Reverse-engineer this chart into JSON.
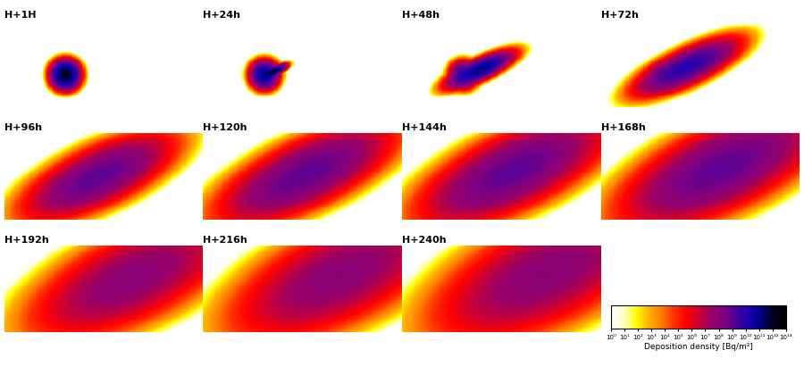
{
  "panels": [
    {
      "label": "H+1H",
      "row": 0,
      "col": 0,
      "time_hrs": 1
    },
    {
      "label": "H+24h",
      "row": 0,
      "col": 1,
      "time_hrs": 24
    },
    {
      "label": "H+48h",
      "row": 0,
      "col": 2,
      "time_hrs": 48
    },
    {
      "label": "H+72h",
      "row": 0,
      "col": 3,
      "time_hrs": 72
    },
    {
      "label": "H+96h",
      "row": 1,
      "col": 0,
      "time_hrs": 96
    },
    {
      "label": "H+120h",
      "row": 1,
      "col": 1,
      "time_hrs": 120
    },
    {
      "label": "H+144h",
      "row": 1,
      "col": 2,
      "time_hrs": 144
    },
    {
      "label": "H+168h",
      "row": 1,
      "col": 3,
      "time_hrs": 168
    },
    {
      "label": "H+192h",
      "row": 2,
      "col": 0,
      "time_hrs": 192
    },
    {
      "label": "H+216h",
      "row": 2,
      "col": 1,
      "time_hrs": 216
    },
    {
      "label": "H+240h",
      "row": 2,
      "col": 2,
      "time_hrs": 240
    }
  ],
  "colormap_colors": [
    "#ffffff",
    "#fffff0",
    "#ffffe0",
    "#ffffc0",
    "#ffff80",
    "#ffff00",
    "#ffee00",
    "#ffdd00",
    "#ffcc00",
    "#ffaa00",
    "#ff8800",
    "#ff6600",
    "#ff4400",
    "#ff2200",
    "#ff0000",
    "#dd0022",
    "#bb0044",
    "#990066",
    "#770088",
    "#5500aa",
    "#3300cc",
    "#1100ee",
    "#0000ff",
    "#000088",
    "#000000"
  ],
  "vmin": 1.0,
  "vmax": 10000000000000.0,
  "colorbar_label": "Deposition density [Bq/m²]",
  "colorbar_ticks": [
    1.0,
    10.0,
    100.0,
    1000.0,
    10000.0,
    100000.0,
    1000000.0,
    10000000.0,
    100000000.0,
    1000000000.0,
    10000000000.0,
    100000000000.0,
    1000000000000.0,
    10000000000000.0
  ],
  "colorbar_ticklabels": [
    "10⁰",
    "10¹",
    "10²",
    "10³",
    "10⁴",
    "10⁵",
    "10⁶",
    "10⁷",
    "10⁸",
    "10⁹",
    "10¹⁰",
    "10¹¹",
    "10¹²",
    "10¹³"
  ],
  "trinity_lat": 33.675,
  "trinity_lon": -106.475,
  "map_extent": [
    -125,
    -65,
    24,
    50
  ],
  "background_color": "#ffffff",
  "title_fontsize": 8,
  "label_fontsize": 7
}
